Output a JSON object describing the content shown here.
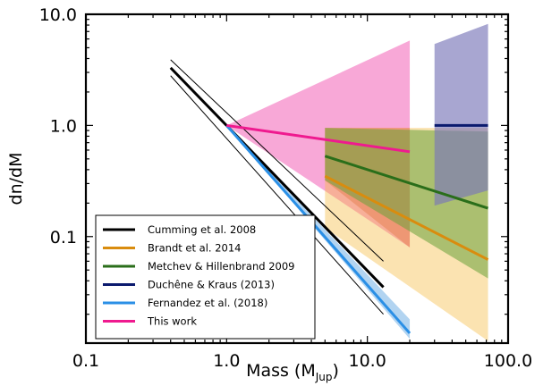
{
  "chart_data": {
    "type": "line",
    "xlabel": "Mass (M",
    "xlabel_sub": "Jup",
    "xlabel_close": ")",
    "ylabel": "dn/dM",
    "x_scale": "log",
    "y_scale": "log",
    "xlim": [
      0.1,
      100.0
    ],
    "ylim": [
      0.011,
      10.0
    ],
    "x_ticks": [
      {
        "value": 0.1,
        "label": "0.1"
      },
      {
        "value": 1.0,
        "label": "1.0"
      },
      {
        "value": 10.0,
        "label": "10.0"
      },
      {
        "value": 100.0,
        "label": "100.0"
      }
    ],
    "y_ticks": [
      {
        "value": 0.1,
        "label": "0.1"
      },
      {
        "value": 1.0,
        "label": "1.0"
      },
      {
        "value": 10.0,
        "label": "10.0"
      }
    ],
    "grid": false,
    "legend_placement": "lower-left",
    "bands": [
      {
        "color": "#ef3fa6",
        "opacity": 0.45,
        "upper": [
          [
            1.0,
            1.0
          ],
          [
            20.0,
            5.8
          ]
        ],
        "lower": [
          [
            1.0,
            1.0
          ],
          [
            20.0,
            0.08
          ]
        ]
      },
      {
        "color": "#d9534f",
        "opacity": 0.45,
        "upper": [
          [
            5.0,
            0.95
          ],
          [
            20.0,
            0.95
          ]
        ],
        "lower": [
          [
            5.0,
            0.32
          ],
          [
            20.0,
            0.08
          ]
        ]
      },
      {
        "color": "#f5b93d",
        "opacity": 0.4,
        "upper": [
          [
            5.0,
            0.95
          ],
          [
            72.0,
            0.95
          ]
        ],
        "lower": [
          [
            5.0,
            0.12
          ],
          [
            72.0,
            0.0115
          ]
        ]
      },
      {
        "color": "#69a33a",
        "opacity": 0.55,
        "upper": [
          [
            5.0,
            0.95
          ],
          [
            72.0,
            0.88
          ]
        ],
        "lower": [
          [
            5.0,
            0.32
          ],
          [
            72.0,
            0.042
          ]
        ]
      },
      {
        "color": "#7a76b8",
        "opacity": 0.65,
        "upper": [
          [
            30.0,
            5.4
          ],
          [
            72.0,
            8.2
          ]
        ],
        "lower": [
          [
            30.0,
            0.19
          ],
          [
            72.0,
            0.26
          ]
        ]
      },
      {
        "color": "#7fb8e8",
        "opacity": 0.6,
        "upper": [
          [
            1.0,
            1.0
          ],
          [
            20.0,
            0.018
          ]
        ],
        "lower": [
          [
            1.0,
            1.0
          ],
          [
            20.0,
            0.012
          ]
        ]
      }
    ],
    "series": [
      {
        "name": "Cumming et al. 2008",
        "color": "#000000",
        "width": 3,
        "x": [
          0.4,
          13.0
        ],
        "y": [
          3.3,
          0.035
        ]
      },
      {
        "name": "Brandt et al. 2014",
        "color": "#d98c0e",
        "width": 3,
        "x": [
          5.0,
          72.0
        ],
        "y": [
          0.35,
          0.062
        ]
      },
      {
        "name": "Metchev & Hillenbrand 2009",
        "color": "#2a6e1a",
        "width": 3,
        "x": [
          5.0,
          72.0
        ],
        "y": [
          0.53,
          0.18
        ]
      },
      {
        "name": "Duchêne & Kraus (2013)",
        "color": "#0b1a6e",
        "width": 3,
        "x": [
          30.0,
          72.0
        ],
        "y": [
          1.0,
          1.0
        ]
      },
      {
        "name": "Fernandez et al. (2018)",
        "color": "#2a8fe6",
        "width": 3,
        "x": [
          1.0,
          20.0
        ],
        "y": [
          1.0,
          0.0135
        ]
      },
      {
        "name": "This work",
        "color": "#ef1a8f",
        "width": 3,
        "x": [
          1.0,
          20.0
        ],
        "y": [
          1.0,
          0.58
        ]
      }
    ],
    "thin_lines": [
      {
        "color": "#000000",
        "width": 1,
        "x": [
          0.4,
          13.0
        ],
        "y": [
          3.9,
          0.06
        ]
      },
      {
        "color": "#000000",
        "width": 1,
        "x": [
          0.4,
          13.0
        ],
        "y": [
          2.8,
          0.02
        ]
      }
    ]
  }
}
